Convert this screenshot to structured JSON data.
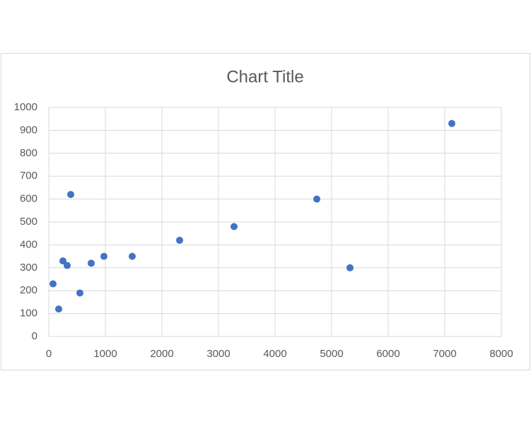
{
  "chart_data": {
    "type": "scatter",
    "title": "Chart Title",
    "series": [
      {
        "color": "#4472c4",
        "x": [
          75,
          175,
          250,
          325,
          388,
          550,
          750,
          975,
          1475,
          2313,
          3275,
          4738,
          5325,
          7125
        ],
        "values": [
          230,
          120,
          330,
          310,
          620,
          190,
          320,
          350,
          350,
          420,
          480,
          600,
          300,
          930
        ]
      }
    ],
    "xlim": [
      0,
      8000
    ],
    "xticks": [
      0,
      1000,
      2000,
      3000,
      4000,
      5000,
      6000,
      7000,
      8000
    ],
    "ylim": [
      0,
      1000
    ],
    "yticks": [
      0,
      100,
      200,
      300,
      400,
      500,
      600,
      700,
      800,
      900,
      1000
    ],
    "grid": true
  }
}
